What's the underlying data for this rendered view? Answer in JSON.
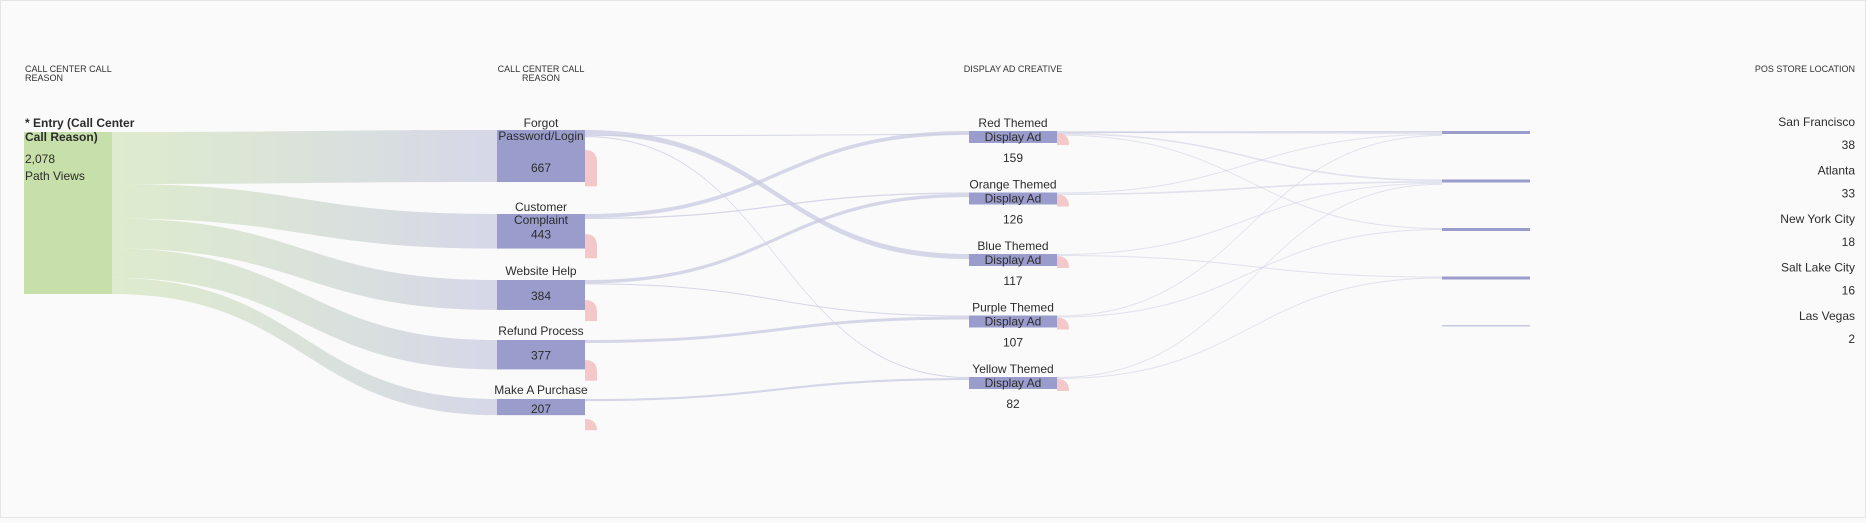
{
  "chart_data": {
    "type": "sankey",
    "columns": [
      {
        "title": "CALL CENTER CALL REASON",
        "align": "left"
      },
      {
        "title": "CALL CENTER CALL REASON",
        "align": "center"
      },
      {
        "title": "DISPLAY AD CREATIVE",
        "align": "center"
      },
      {
        "title": "POS STORE LOCATION",
        "align": "right"
      }
    ],
    "entry": {
      "label": "* Entry (Call Center Call Reason)",
      "label_lines": [
        "* Entry (Call Center",
        "Call Reason)"
      ],
      "value_text": "2,078",
      "caption": "Path Views",
      "value": 2078
    },
    "nodes": [
      {
        "col": 1,
        "label_lines": [
          "Forgot",
          "Password/Login"
        ],
        "value": 667
      },
      {
        "col": 1,
        "label_lines": [
          "Customer",
          "Complaint"
        ],
        "value": 443
      },
      {
        "col": 1,
        "label_lines": [
          "Website Help"
        ],
        "value": 384
      },
      {
        "col": 1,
        "label_lines": [
          "Refund Process"
        ],
        "value": 377
      },
      {
        "col": 1,
        "label_lines": [
          "Make A Purchase"
        ],
        "value": 207
      },
      {
        "col": 2,
        "label_lines": [
          "Red Themed",
          "Display Ad"
        ],
        "value": 159
      },
      {
        "col": 2,
        "label_lines": [
          "Orange Themed",
          "Display Ad"
        ],
        "value": 126
      },
      {
        "col": 2,
        "label_lines": [
          "Blue Themed",
          "Display Ad"
        ],
        "value": 117
      },
      {
        "col": 2,
        "label_lines": [
          "Purple Themed",
          "Display Ad"
        ],
        "value": 107
      },
      {
        "col": 2,
        "label_lines": [
          "Yellow Themed",
          "Display Ad"
        ],
        "value": 82
      },
      {
        "col": 3,
        "label_lines": [
          "San Francisco"
        ],
        "value": 38
      },
      {
        "col": 3,
        "label_lines": [
          "Atlanta"
        ],
        "value": 33
      },
      {
        "col": 3,
        "label_lines": [
          "New York City"
        ],
        "value": 18
      },
      {
        "col": 3,
        "label_lines": [
          "Salt Lake City"
        ],
        "value": 16
      },
      {
        "col": 3,
        "label_lines": [
          "Las Vegas"
        ],
        "value": 2
      }
    ],
    "links": [
      {
        "source": "entry",
        "target": 0,
        "value": 667
      },
      {
        "source": "entry",
        "target": 1,
        "value": 443
      },
      {
        "source": "entry",
        "target": 2,
        "value": 384
      },
      {
        "source": "entry",
        "target": 3,
        "value": 377
      },
      {
        "source": "entry",
        "target": 4,
        "value": 207
      },
      {
        "source": 0,
        "target": 7,
        "value": 60
      },
      {
        "source": 0,
        "target": 10,
        "value": 6
      },
      {
        "source": 0,
        "target": 9,
        "value": 8
      },
      {
        "source": 1,
        "target": 5,
        "value": 45
      },
      {
        "source": 1,
        "target": 6,
        "value": 15
      },
      {
        "source": 2,
        "target": 6,
        "value": 40
      },
      {
        "source": 2,
        "target": 8,
        "value": 10
      },
      {
        "source": 3,
        "target": 8,
        "value": 35
      },
      {
        "source": 4,
        "target": 9,
        "value": 25
      },
      {
        "source": 5,
        "target": 10,
        "value": 10
      },
      {
        "source": 5,
        "target": 11,
        "value": 8
      },
      {
        "source": 5,
        "target": 12,
        "value": 3
      },
      {
        "source": 6,
        "target": 10,
        "value": 3
      },
      {
        "source": 6,
        "target": 11,
        "value": 8
      },
      {
        "source": 7,
        "target": 11,
        "value": 3
      },
      {
        "source": 7,
        "target": 13,
        "value": 3
      },
      {
        "source": 8,
        "target": 10,
        "value": 3
      },
      {
        "source": 8,
        "target": 12,
        "value": 2
      },
      {
        "source": 9,
        "target": 11,
        "value": 3
      },
      {
        "source": 9,
        "target": 13,
        "value": 3
      }
    ],
    "colors": {
      "entry": "#c7dfa8",
      "node": "#9a9dcc",
      "link": "#c8cae2",
      "dropoff": "#f4c8c8",
      "marker": "#9a9dcc",
      "text": "#2c2c2c"
    }
  }
}
